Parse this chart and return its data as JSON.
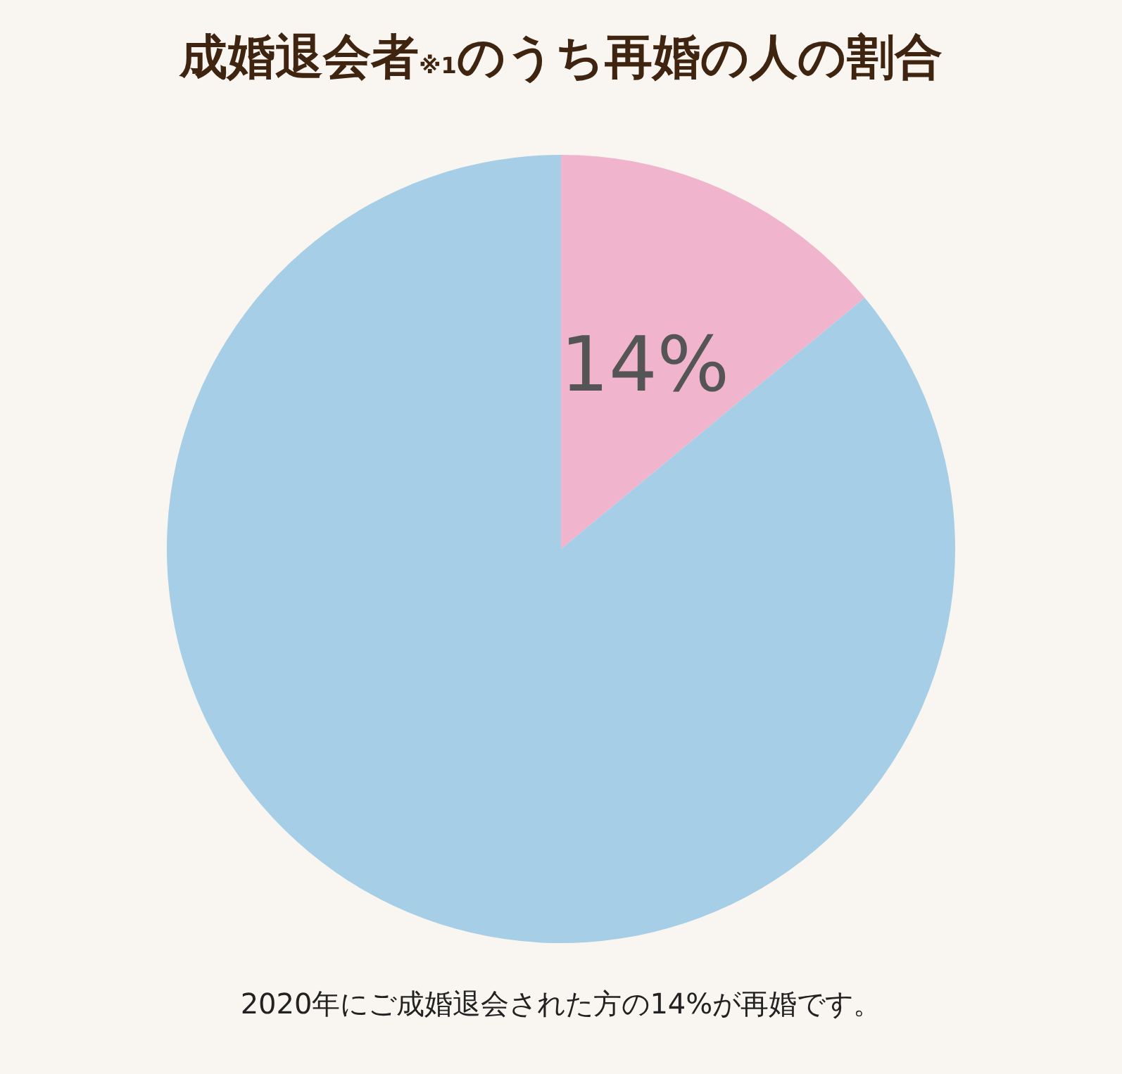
{
  "chart_data": {
    "type": "pie",
    "title": "成婚退会者$_{※1}$のうち再婚の人の割合",
    "categories": [
      null,
      null
    ],
    "values": [
      14,
      86
    ],
    "colors": [
      "#f0b4cc",
      "#a6cee6"
    ],
    "value_labels": [
      "14%",
      null
    ],
    "annotations": [
      "2020年にご成婚退会された方の14%が再婚です。"
    ]
  }
}
